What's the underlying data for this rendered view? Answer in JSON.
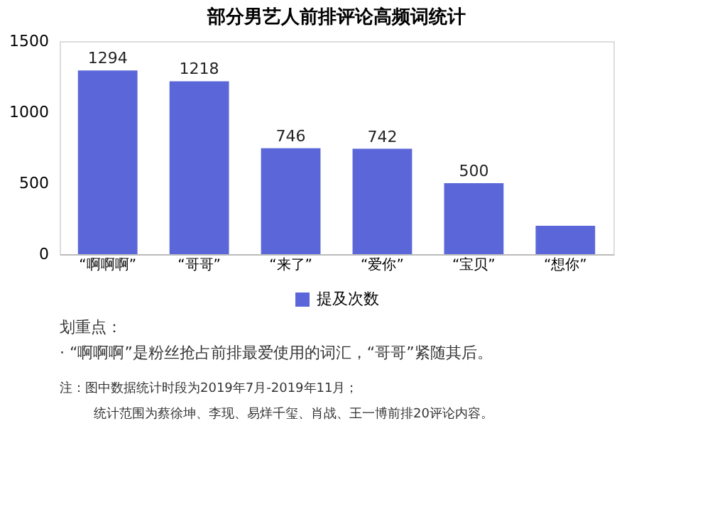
{
  "chart_data": {
    "type": "bar",
    "title": "部分男艺人前排评论高频词统计",
    "categories": [
      "“啊啊啊”",
      "“哥哥”",
      "“来了”",
      "“爱你”",
      "“宝贝”",
      "“想你”"
    ],
    "series": [
      {
        "name": "提及次数",
        "color": "#5b67d8",
        "values": [
          1294,
          1218,
          746,
          742,
          500,
          200
        ]
      }
    ],
    "value_labels": [
      "1294",
      "1218",
      "746",
      "742",
      "500",
      null
    ],
    "ylim": [
      0,
      1500
    ],
    "yticks": [
      0,
      500,
      {
        "value": 1000,
        "label": "1000"
      },
      {
        "value": 1500,
        "label": "1500"
      }
    ],
    "grid": false,
    "legend": "bottom",
    "annotations": [
      "划重点：",
      "· “啊啊啊”是粉丝抢占前排最爱使用的词汇，“哥哥”紧随其后。",
      "注：图中数据统计时段为2019年7月-2019年11月；",
      "统计范围为蔡徐坤、李现、易烊千玺、肖战、王一博前排20评论内容。"
    ]
  }
}
